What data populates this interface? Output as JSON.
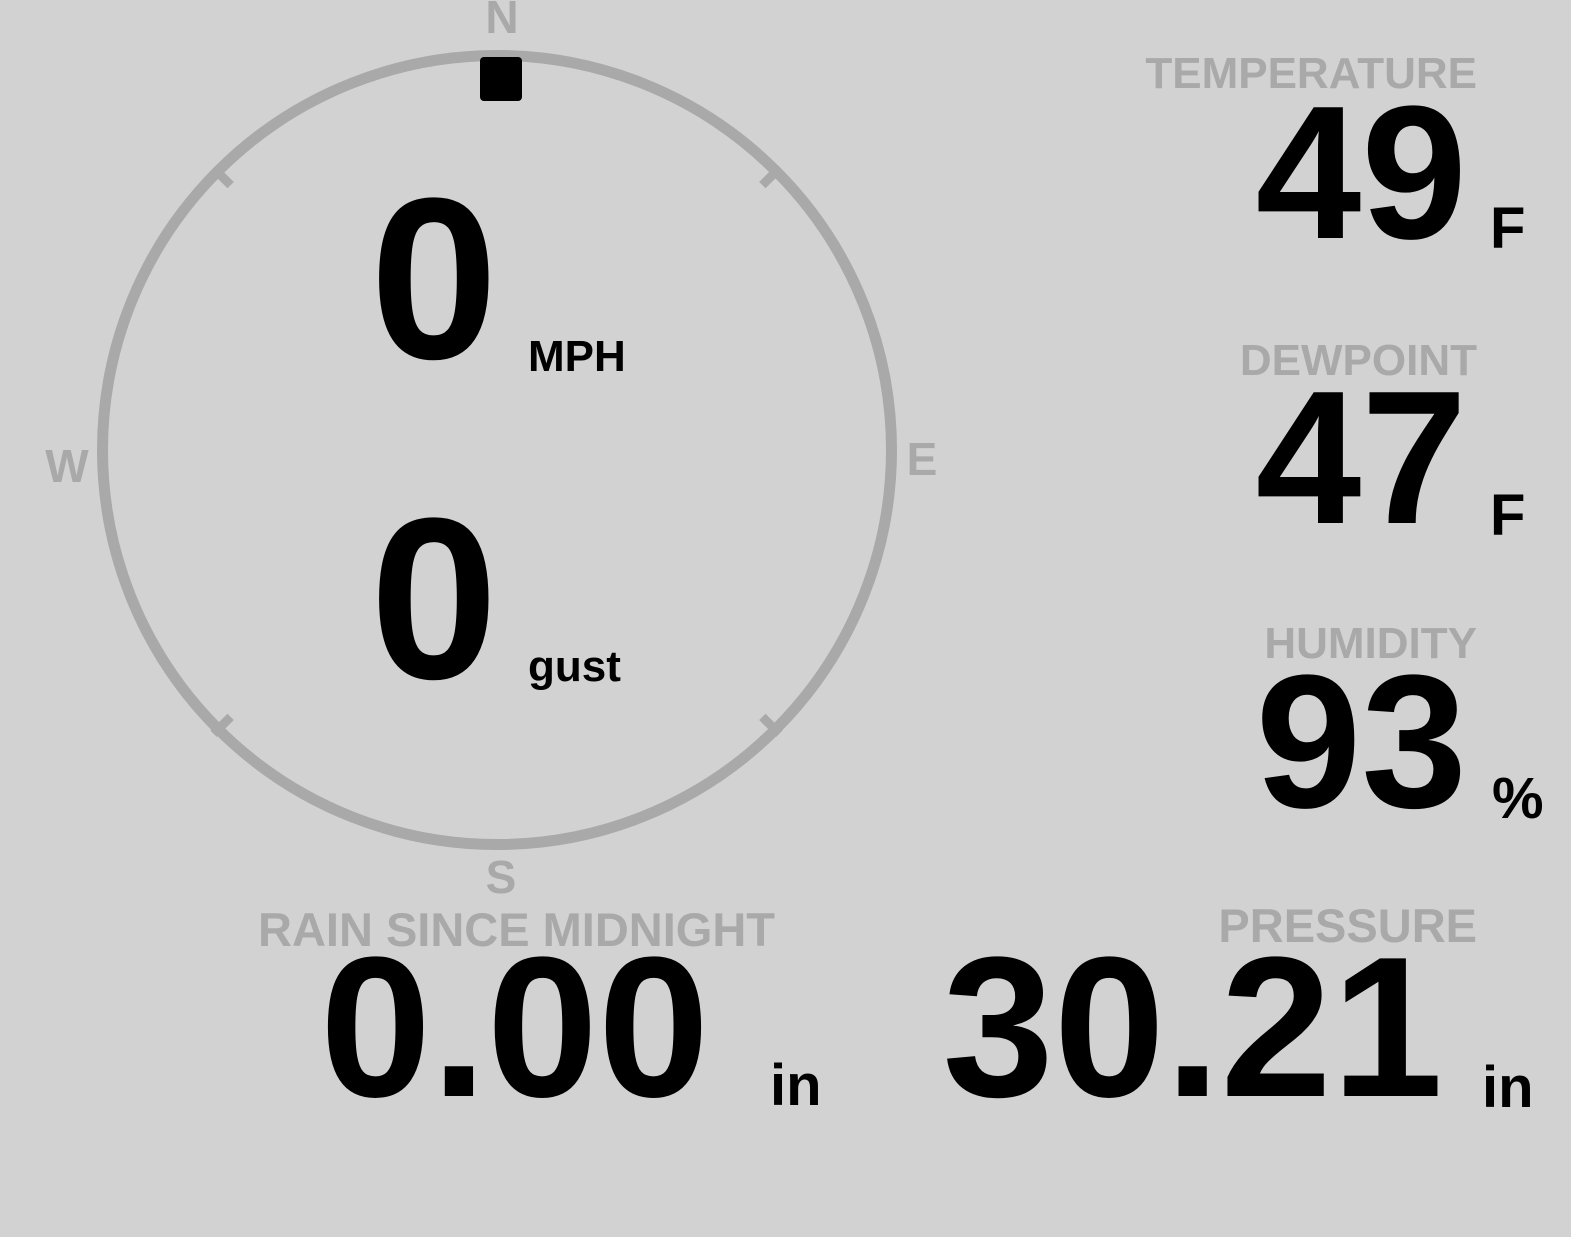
{
  "theme": {
    "background": "#d2d2d2",
    "muted_gray": "#a9a9a9",
    "value_black": "#000000"
  },
  "wind": {
    "compass": {
      "north": "N",
      "east": "E",
      "south": "S",
      "west": "W"
    },
    "direction_deg": 0,
    "speed": {
      "value": "0",
      "unit": "MPH"
    },
    "gust": {
      "value": "0",
      "unit": "gust"
    }
  },
  "metrics": {
    "temperature": {
      "label": "TEMPERATURE",
      "value": "49",
      "unit": "F"
    },
    "dewpoint": {
      "label": "DEWPOINT",
      "value": "47",
      "unit": "F"
    },
    "humidity": {
      "label": "HUMIDITY",
      "value": "93",
      "unit": "%"
    },
    "rain": {
      "label": "RAIN SINCE MIDNIGHT",
      "value": "0.00",
      "unit": "in"
    },
    "pressure": {
      "label": "PRESSURE",
      "value": "30.21",
      "unit": "in"
    }
  }
}
